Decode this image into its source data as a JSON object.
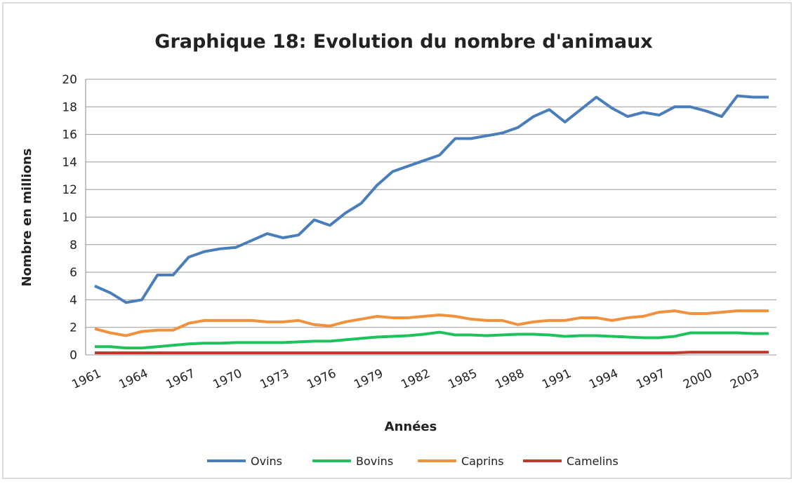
{
  "chart_data": {
    "type": "line",
    "title": "Graphique 18: Evolution du nombre d'animaux",
    "x_label": "Années",
    "y_label": "Nombre en millions",
    "categories": [
      1961,
      null,
      null,
      1964,
      null,
      null,
      1967,
      null,
      null,
      1970,
      null,
      null,
      1973,
      null,
      null,
      1976,
      null,
      null,
      1979,
      null,
      null,
      1982,
      null,
      null,
      1985,
      null,
      null,
      1988,
      null,
      null,
      1991,
      null,
      null,
      1994,
      null,
      null,
      1997,
      null,
      null,
      2000,
      null,
      null,
      2003,
      null
    ],
    "series": [
      {
        "name": "Ovins",
        "color": "#4a7ebb",
        "values": [
          5.0,
          4.5,
          3.8,
          4.0,
          5.8,
          5.8,
          7.1,
          7.5,
          7.7,
          7.8,
          8.3,
          8.8,
          8.5,
          8.7,
          9.8,
          9.4,
          10.3,
          11.0,
          12.3,
          13.3,
          13.7,
          14.1,
          14.5,
          15.7,
          15.7,
          15.9,
          16.1,
          16.5,
          17.3,
          17.8,
          16.9,
          17.8,
          18.7,
          17.9,
          17.3,
          17.6,
          17.4,
          18.0,
          18.0,
          17.7,
          17.3,
          18.8,
          18.7,
          18.7
        ]
      },
      {
        "name": "Bovins",
        "color": "#1ec25a",
        "values": [
          0.6,
          0.6,
          0.5,
          0.5,
          0.6,
          0.7,
          0.8,
          0.85,
          0.85,
          0.9,
          0.9,
          0.9,
          0.9,
          0.95,
          1.0,
          1.0,
          1.1,
          1.2,
          1.3,
          1.35,
          1.4,
          1.5,
          1.65,
          1.45,
          1.45,
          1.4,
          1.45,
          1.5,
          1.5,
          1.45,
          1.35,
          1.4,
          1.4,
          1.35,
          1.3,
          1.25,
          1.25,
          1.35,
          1.6,
          1.6,
          1.6,
          1.6,
          1.55,
          1.55
        ]
      },
      {
        "name": "Caprins",
        "color": "#f0923c",
        "values": [
          1.9,
          1.6,
          1.4,
          1.7,
          1.8,
          1.8,
          2.3,
          2.5,
          2.5,
          2.5,
          2.5,
          2.4,
          2.4,
          2.5,
          2.2,
          2.1,
          2.4,
          2.6,
          2.8,
          2.7,
          2.7,
          2.8,
          2.9,
          2.8,
          2.6,
          2.5,
          2.5,
          2.2,
          2.4,
          2.5,
          2.5,
          2.7,
          2.7,
          2.5,
          2.7,
          2.8,
          3.1,
          3.2,
          3.0,
          3.0,
          3.1,
          3.2,
          3.2,
          3.2
        ]
      },
      {
        "name": "Camelins",
        "color": "#c0392b",
        "values": [
          0.15,
          0.15,
          0.15,
          0.15,
          0.15,
          0.15,
          0.15,
          0.15,
          0.15,
          0.15,
          0.15,
          0.15,
          0.15,
          0.15,
          0.15,
          0.15,
          0.15,
          0.15,
          0.15,
          0.15,
          0.15,
          0.15,
          0.15,
          0.15,
          0.15,
          0.15,
          0.15,
          0.15,
          0.15,
          0.15,
          0.15,
          0.15,
          0.15,
          0.15,
          0.15,
          0.15,
          0.15,
          0.15,
          0.2,
          0.2,
          0.2,
          0.2,
          0.2,
          0.2
        ]
      }
    ],
    "ylim": [
      0,
      20
    ],
    "yticks": [
      0,
      2,
      4,
      6,
      8,
      10,
      12,
      14,
      16,
      18,
      20
    ],
    "grid": true,
    "legend": "bottom"
  }
}
